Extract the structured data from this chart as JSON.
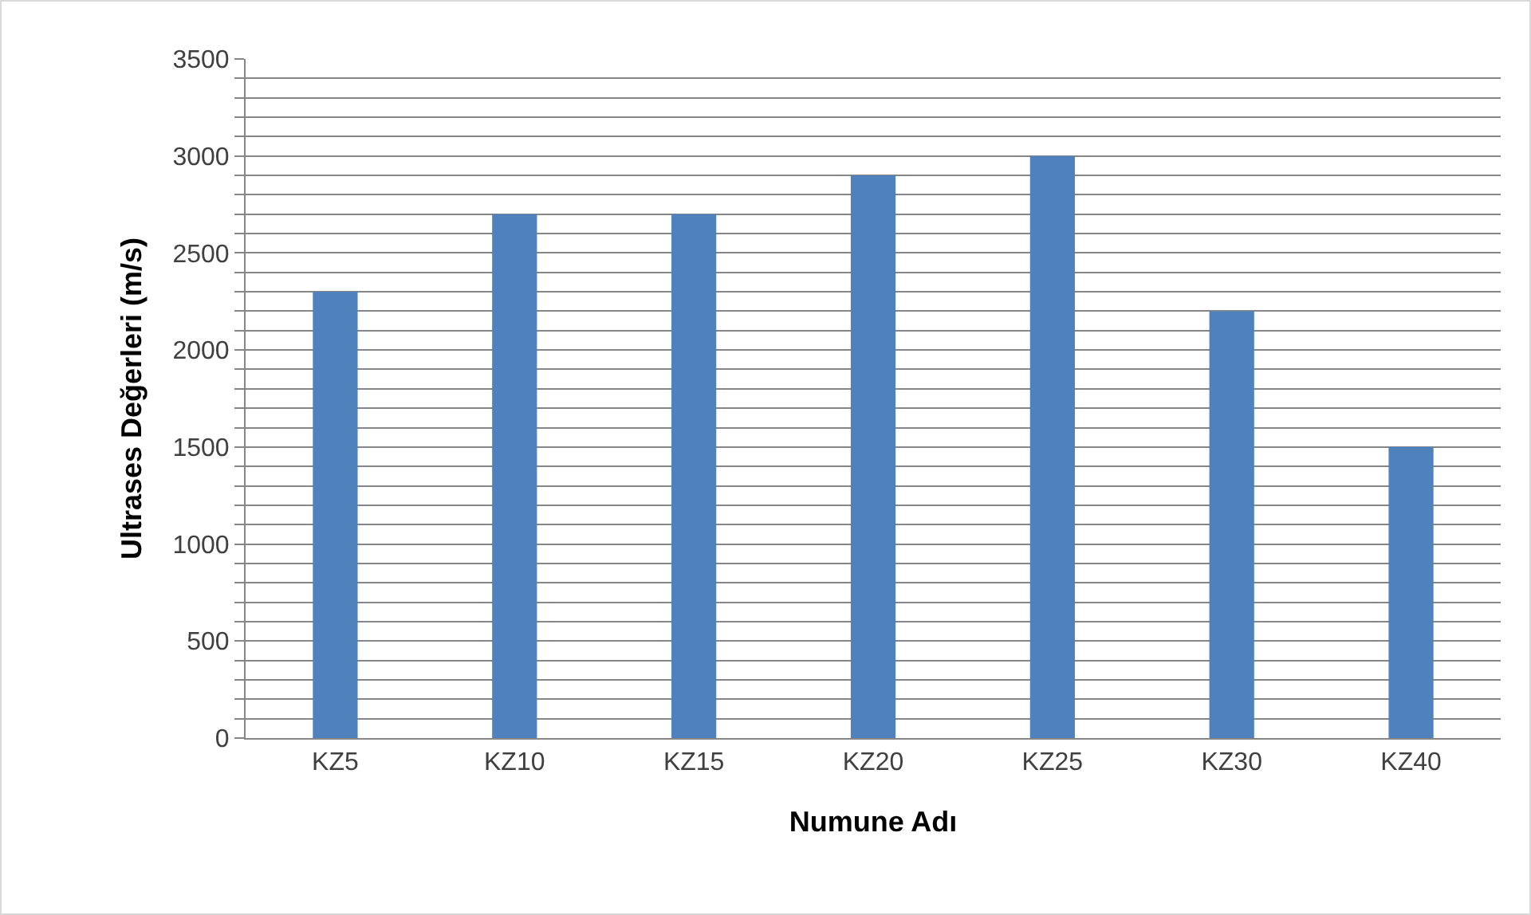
{
  "chart_data": {
    "type": "bar",
    "xlabel": "Numune Adı",
    "ylabel": "Ultrases Değerleri (m/s)",
    "categories": [
      "KZ5",
      "KZ10",
      "KZ15",
      "KZ20",
      "KZ25",
      "KZ30",
      "KZ40"
    ],
    "values": [
      2300,
      2700,
      2700,
      2900,
      3000,
      2200,
      1500
    ],
    "color": "#4f81bd",
    "ylim": [
      0,
      3500
    ],
    "yticks": [
      0,
      {
        "value": 100,
        "label": null
      },
      {
        "value": 200,
        "label": null
      },
      {
        "value": 300,
        "label": null
      },
      {
        "value": 400,
        "label": null
      },
      500,
      {
        "value": 600,
        "label": null
      },
      {
        "value": 700,
        "label": null
      },
      {
        "value": 800,
        "label": null
      },
      {
        "value": 900,
        "label": null
      },
      1000,
      {
        "value": 1100,
        "label": null
      },
      {
        "value": 1200,
        "label": null
      },
      {
        "value": 1300,
        "label": null
      },
      {
        "value": 1400,
        "label": null
      },
      1500,
      {
        "value": 1600,
        "label": null
      },
      {
        "value": 1700,
        "label": null
      },
      {
        "value": 1800,
        "label": null
      },
      {
        "value": 1900,
        "label": null
      },
      2000,
      {
        "value": 2100,
        "label": null
      },
      {
        "value": 2200,
        "label": null
      },
      {
        "value": 2300,
        "label": null
      },
      {
        "value": 2400,
        "label": null
      },
      2500,
      {
        "value": 2600,
        "label": null
      },
      {
        "value": 2700,
        "label": null
      },
      {
        "value": 2800,
        "label": null
      },
      {
        "value": 2900,
        "label": null
      },
      3000,
      {
        "value": 3100,
        "label": null
      },
      {
        "value": 3200,
        "label": null
      },
      {
        "value": 3300,
        "label": null
      },
      {
        "value": 3400,
        "label": null
      },
      3500
    ],
    "grid": "y"
  }
}
